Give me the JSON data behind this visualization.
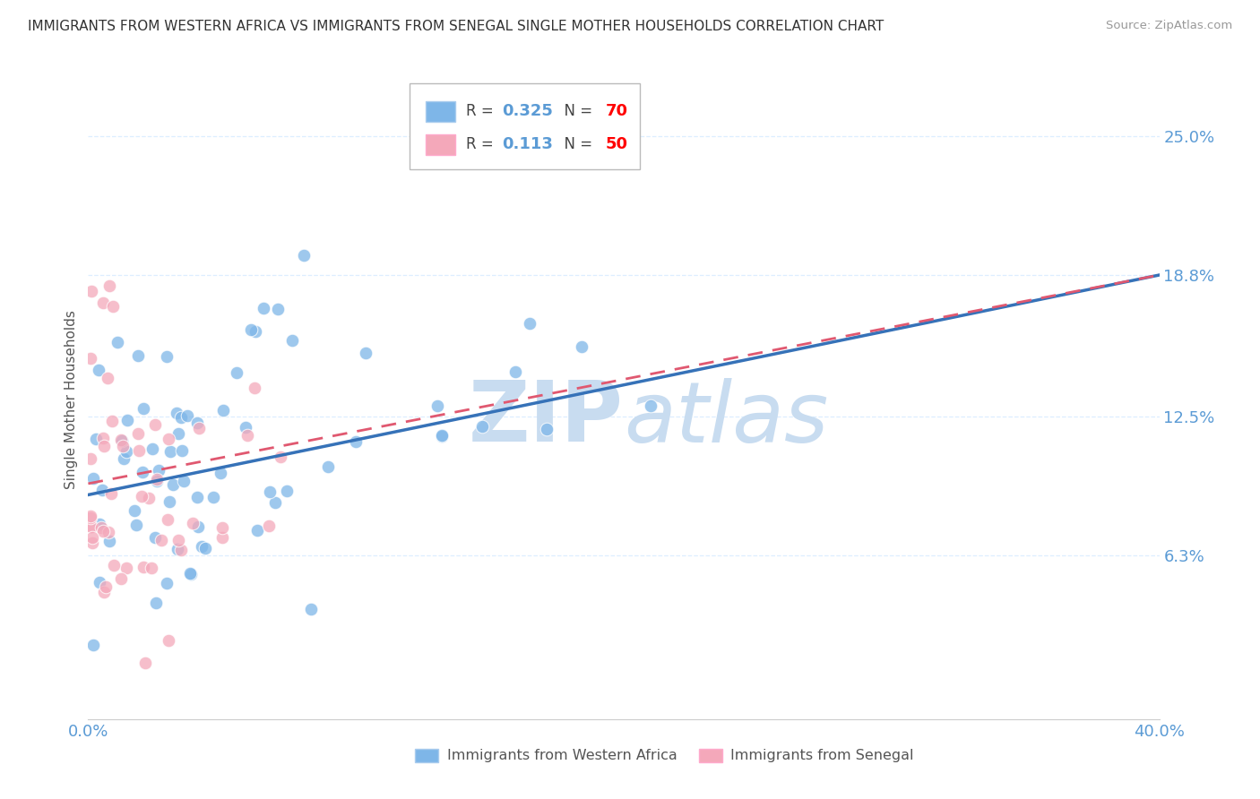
{
  "title": "IMMIGRANTS FROM WESTERN AFRICA VS IMMIGRANTS FROM SENEGAL SINGLE MOTHER HOUSEHOLDS CORRELATION CHART",
  "source": "Source: ZipAtlas.com",
  "ylabel": "Single Mother Households",
  "watermark": "ZIPatlas",
  "r_western": 0.325,
  "n_western": 70,
  "r_senegal": 0.113,
  "n_senegal": 50,
  "xlim": [
    0.0,
    0.4
  ],
  "ylim": [
    -0.01,
    0.275
  ],
  "ytick_positions": [
    0.063,
    0.125,
    0.188,
    0.25
  ],
  "ytick_labels": [
    "6.3%",
    "12.5%",
    "18.8%",
    "25.0%"
  ],
  "color_western": "#7EB6E8",
  "color_senegal": "#F4A8BA",
  "trendline_western_color": "#3672B8",
  "trendline_senegal_color": "#E05870",
  "background_color": "#FFFFFF",
  "tick_label_color": "#5B9BD5",
  "title_color": "#333333",
  "grid_color": "#DDEEFF",
  "legend_r_color": "#5B9BD5",
  "legend_n_color": "#FF0000",
  "watermark_color": "#C8DCF0"
}
